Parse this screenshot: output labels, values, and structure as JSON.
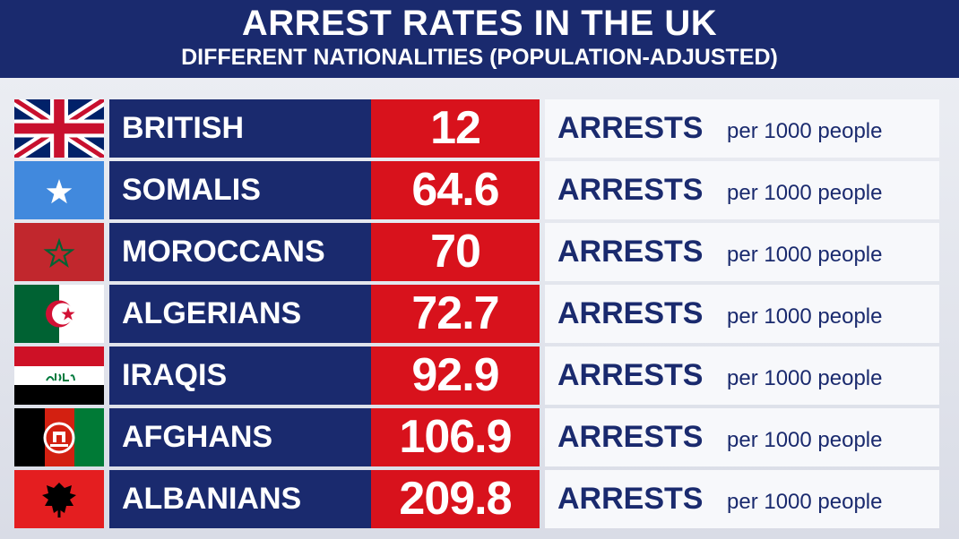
{
  "title": "ARREST RATES IN THE UK",
  "subtitle": "DIFFERENT NATIONALITIES (POPULATION-ADJUSTED)",
  "unit_main": "ARRESTS",
  "unit_sub": "per 1000 people",
  "colors": {
    "header": "#1a2a6e",
    "name_cell": "#1a2a6e",
    "value_cell": "#d8121c",
    "unit_cell": "#f7f8fb"
  },
  "chart_data": {
    "type": "table",
    "title": "ARREST RATES IN THE UK",
    "subtitle": "DIFFERENT NATIONALITIES (POPULATION-ADJUSTED)",
    "categories": [
      "BRITISH",
      "SOMALIS",
      "MOROCCANS",
      "ALGERIANS",
      "IRAQIS",
      "AFGHANS",
      "ALBANIANS"
    ],
    "values": [
      "12",
      "64.6",
      "70",
      "72.7",
      "92.9",
      "106.9",
      "209.8"
    ],
    "flags": [
      "uk-flag-icon",
      "somalia-flag-icon",
      "morocco-flag-icon",
      "algeria-flag-icon",
      "iraq-flag-icon",
      "afghanistan-flag-icon",
      "albania-flag-icon"
    ]
  }
}
